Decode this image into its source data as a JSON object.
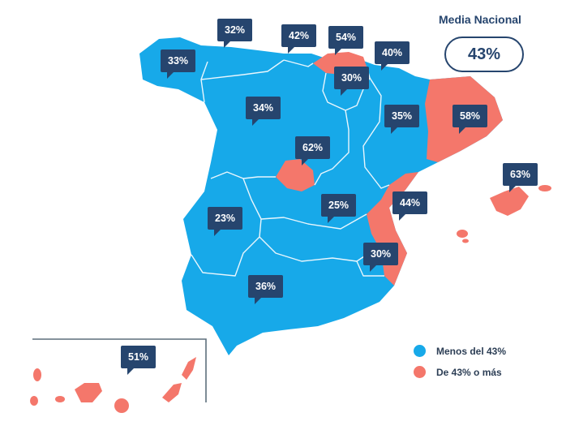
{
  "national": {
    "title": "Media Nacional",
    "value": "43%"
  },
  "colors": {
    "below": "#17a9e9",
    "above": "#f4776b",
    "callout": "#26456e",
    "border": "#e9f6fd"
  },
  "regions": [
    {
      "id": "galicia",
      "value": "33%",
      "group": "below"
    },
    {
      "id": "asturias",
      "value": "32%",
      "group": "below"
    },
    {
      "id": "cantabria",
      "value": "42%",
      "group": "below"
    },
    {
      "id": "pais-vasco",
      "value": "54%",
      "group": "above"
    },
    {
      "id": "navarra",
      "value": "40%",
      "group": "below"
    },
    {
      "id": "la-rioja",
      "value": "30%",
      "group": "below"
    },
    {
      "id": "castilla-leon",
      "value": "34%",
      "group": "below"
    },
    {
      "id": "aragon",
      "value": "35%",
      "group": "below"
    },
    {
      "id": "cataluna",
      "value": "58%",
      "group": "above"
    },
    {
      "id": "madrid",
      "value": "62%",
      "group": "above"
    },
    {
      "id": "baleares",
      "value": "63%",
      "group": "above"
    },
    {
      "id": "extremadura",
      "value": "23%",
      "group": "below"
    },
    {
      "id": "castilla-la-mancha",
      "value": "25%",
      "group": "below"
    },
    {
      "id": "comunidad-valenciana",
      "value": "44%",
      "group": "above"
    },
    {
      "id": "murcia",
      "value": "30%",
      "group": "below"
    },
    {
      "id": "andalucia",
      "value": "36%",
      "group": "below"
    },
    {
      "id": "canarias",
      "value": "51%",
      "group": "above"
    }
  ],
  "legend": [
    {
      "label": "Menos del 43%",
      "color": "#17a9e9"
    },
    {
      "label": "De 43% o más",
      "color": "#f4776b"
    }
  ]
}
